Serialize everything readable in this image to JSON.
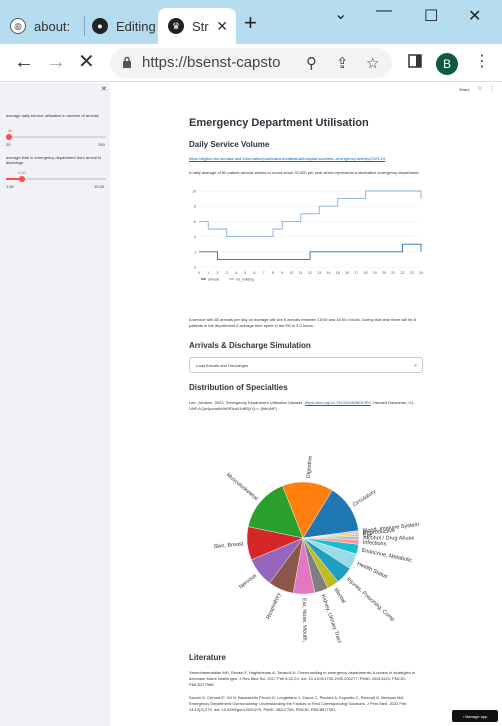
{
  "browser": {
    "tabs": [
      {
        "label": "about:",
        "icon": "globe-icon"
      },
      {
        "label": "Editing",
        "icon": "github-icon"
      },
      {
        "label": "Str",
        "icon": "streamlit-crown-icon",
        "active": true
      }
    ],
    "url": "https://bsenst-capsto",
    "profile_initial": "B"
  },
  "sidebar": {
    "slider1": {
      "label": "average daily service utilisation in number of arrivals",
      "value": "40",
      "min": "20",
      "max": "700",
      "fraction": 0.03
    },
    "slider2": {
      "label": "average time in emergency department from arrival to discharge",
      "value": "3.00",
      "min": "1.60",
      "max": "10.00",
      "fraction": 0.16
    }
  },
  "topbar": {
    "share": "Share"
  },
  "main": {
    "title": "Emergency Department Utilisation",
    "daily_heading": "Daily Service Volume",
    "daily_link": "https://digital.nhs.uk/data-and-information/publications/statistical/hospital-accident--emergency-activity/2023-24",
    "daily_text": "A daily average of 80 patient arrivals seems to round about 30,000 per year which represents a devinative emergency department.",
    "after_chart_text": "A service with 80 arrivals per day on average will see 5 arrivals between 15:00 and 16:00 o'clock. During that time there will be 8 patients in the department if average time spent in the ED is 3.0 hours.",
    "arrivals_heading": "Arrivals & Discharge Simulation",
    "select_value": "Load Arrivals and Discharges",
    "distribution_heading": "Distribution of Specialties",
    "distribution_citation_plain": "Lee, Jordane, 2023, 'Emergency Department Utilisation Dataset', ",
    "distribution_citation_link": "https://doi.org/10.7910/DVN/BEE3P9",
    "distribution_citation_tail": ", Harvard Dataverse, V1, UNF:6:Qe4pcnaWxW9FkoN1hB5jYQ== [fileUNF]",
    "literature_heading": "Literature",
    "literature_1": "Yarmohammadian MH, Rezaei F, Haghshenas A, Tavakoli N. Overcrowding in emergency departments: A review of strategies to decrease future challenges. J Res Med Sci. 2017 Feb 6;22:23. doi: 10.4103/1735-1995.200277. PMID: 28413420; PMCID: PMC5377968.",
    "literature_2": "Savioli G, Ceresa IF, Gri N, Bavestrello Piccini G, Longhitano Y, Zanza C, Piccioni A, Esposito C, Ricevuti G, Bressan MA. Emergency Department Overcrowding: Understanding the Factors to Find Corresponding Solutions. J Pers Med. 2022 Feb 14;12(2):279. doi: 10.3390/jpm12020279. PMID: 35207769; PMCID: PMC8877301."
  },
  "manage_app": "Manage app",
  "chart_data": [
    {
      "type": "line",
      "x": [
        0,
        1,
        2,
        3,
        4,
        5,
        6,
        7,
        8,
        9,
        10,
        11,
        12,
        13,
        14,
        15,
        16,
        17,
        18,
        19,
        20,
        21,
        22,
        23,
        24
      ],
      "ylim": [
        0,
        10
      ],
      "yticks": [
        "0",
        "2",
        "4",
        "6",
        "8",
        "10"
      ],
      "xticks": [
        "0",
        "1",
        "2",
        "3",
        "4",
        "5",
        "6",
        "7",
        "8",
        "9",
        "10",
        "11",
        "12",
        "13",
        "14",
        "15",
        "16",
        "17",
        "18",
        "19",
        "20",
        "21",
        "22",
        "23",
        "24"
      ],
      "series": [
        {
          "name": "arrivals",
          "color": "#1f6fb4",
          "values": [
            2,
            2,
            1,
            1,
            1,
            1,
            1,
            1,
            1,
            1,
            1,
            1,
            2,
            2,
            2,
            2,
            2,
            2,
            2,
            2,
            2,
            2,
            3,
            3,
            2
          ]
        },
        {
          "name": "ed_building",
          "color": "#7fb0e0",
          "values": [
            6,
            5,
            5,
            4,
            4,
            4,
            4,
            4,
            5,
            6,
            6,
            7,
            7,
            8,
            8,
            9,
            9,
            9,
            10,
            10,
            10,
            10,
            10,
            10,
            9
          ]
        }
      ]
    },
    {
      "type": "pie",
      "slices": [
        {
          "label": "Circulatory",
          "value": 12.5,
          "color": "#1f77b4"
        },
        {
          "label": "Blood, Immune System",
          "value": 0.5,
          "color": "#aec7e8"
        },
        {
          "label": "Reproductive",
          "value": 0.5,
          "color": "#ffbb78"
        },
        {
          "label": "Eye",
          "value": 0.5,
          "color": "#98df8a"
        },
        {
          "label": "Alcohol / Drug Abuse",
          "value": 0.8,
          "color": "#c5b0d5"
        },
        {
          "label": "Infections",
          "value": 1.2,
          "color": "#ff9896"
        },
        {
          "label": "Endocrine, Metabolic",
          "value": 2.5,
          "color": "#17becf"
        },
        {
          "label": "Health Status",
          "value": 4,
          "color": "#9edae5"
        },
        {
          "label": "Injuries, Poisoning, Comp",
          "value": 4.5,
          "color": "#1f9ec4"
        },
        {
          "label": "Mental",
          "value": 3,
          "color": "#bcbd22"
        },
        {
          "label": "Kidney, Urinary Tract",
          "value": 3.5,
          "color": "#7f7f7f"
        },
        {
          "label": "Ear, Nose, Mouth, Dental",
          "value": 5.5,
          "color": "#e377c2"
        },
        {
          "label": "Respiratory",
          "value": 6.5,
          "color": "#8c564b"
        },
        {
          "label": "Nervous",
          "value": 7.5,
          "color": "#9467bd"
        },
        {
          "label": "Skin, Breast",
          "value": 8.5,
          "color": "#d62728"
        },
        {
          "label": "Musculoskeletal",
          "value": 14,
          "color": "#2ca02c"
        },
        {
          "label": "Digestive",
          "value": 13,
          "color": "#ff7f0e"
        }
      ]
    }
  ]
}
